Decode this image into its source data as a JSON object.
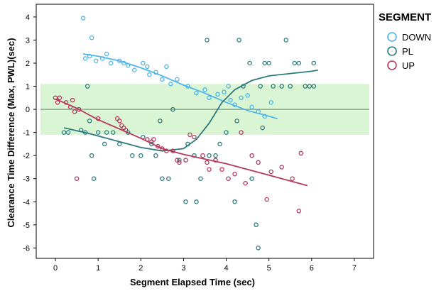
{
  "chart_data": {
    "type": "scatter",
    "title": "",
    "xlabel": "Segment Elapsed Time (sec)",
    "ylabel": "Clearance Time Difference (Max, PWL)(sec)",
    "xlim": [
      -0.45,
      7.45
    ],
    "ylim": [
      -6.45,
      4.55
    ],
    "xticks": [
      "0",
      "1",
      "2",
      "3",
      "4",
      "5",
      "6",
      "7"
    ],
    "yticks": [
      "4",
      "3",
      "2",
      "1",
      "0",
      "-1",
      "-2",
      "-3",
      "-4",
      "-5",
      "-6"
    ],
    "band": {
      "from": -1.1,
      "to": 1.1,
      "color": "#d9f5d3"
    },
    "reference_line": {
      "y": 0,
      "color": "#6e8f6e"
    },
    "grid": false,
    "legend": {
      "title": "SEGMENT",
      "position": "right"
    },
    "series": [
      {
        "name": "DOWN",
        "color": "#4fb5e8",
        "points": [
          [
            0.65,
            3.95
          ],
          [
            0.85,
            3.1
          ],
          [
            0.7,
            2.2
          ],
          [
            0.8,
            2.3
          ],
          [
            0.95,
            2.1
          ],
          [
            1.1,
            2.2
          ],
          [
            1.2,
            2.4
          ],
          [
            1.3,
            2.0
          ],
          [
            1.5,
            2.1
          ],
          [
            1.6,
            2.0
          ],
          [
            1.7,
            1.9
          ],
          [
            1.85,
            1.7
          ],
          [
            2.05,
            2.0
          ],
          [
            2.15,
            1.85
          ],
          [
            2.2,
            1.5
          ],
          [
            2.35,
            1.6
          ],
          [
            2.5,
            1.3
          ],
          [
            2.6,
            1.85
          ],
          [
            2.7,
            1.1
          ],
          [
            2.85,
            1.3
          ],
          [
            3.1,
            1.0
          ],
          [
            3.3,
            0.7
          ],
          [
            3.5,
            0.85
          ],
          [
            3.6,
            0.5
          ],
          [
            3.8,
            0.65
          ],
          [
            3.95,
            0.75
          ],
          [
            4.05,
            1.0
          ],
          [
            4.1,
            0.4
          ],
          [
            4.2,
            0.2
          ],
          [
            4.35,
            0.5
          ],
          [
            4.5,
            0.6
          ],
          [
            4.6,
            0.1
          ],
          [
            4.75,
            -0.1
          ],
          [
            4.9,
            -0.3
          ],
          [
            5.05,
            0.3
          ]
        ],
        "trend": [
          [
            0.65,
            2.4
          ],
          [
            1.0,
            2.3
          ],
          [
            1.5,
            2.1
          ],
          [
            2.0,
            1.8
          ],
          [
            2.5,
            1.45
          ],
          [
            3.0,
            1.05
          ],
          [
            3.5,
            0.7
          ],
          [
            4.0,
            0.3
          ],
          [
            4.5,
            -0.05
          ],
          [
            5.0,
            -0.3
          ],
          [
            5.2,
            -0.4
          ]
        ]
      },
      {
        "name": "PL",
        "color": "#2e7b7d",
        "points": [
          [
            0.2,
            -1.0
          ],
          [
            0.3,
            -1.0
          ],
          [
            0.6,
            -0.9
          ],
          [
            0.7,
            -1.0
          ],
          [
            0.75,
            1.0
          ],
          [
            0.8,
            -0.5
          ],
          [
            0.85,
            -2.0
          ],
          [
            0.9,
            -3.0
          ],
          [
            1.0,
            -1.0
          ],
          [
            1.15,
            -1.5
          ],
          [
            1.2,
            -1.0
          ],
          [
            1.35,
            -1.0
          ],
          [
            1.5,
            -1.5
          ],
          [
            1.7,
            -1.0
          ],
          [
            1.8,
            -2.0
          ],
          [
            2.0,
            -2.0
          ],
          [
            2.05,
            -1.2
          ],
          [
            2.25,
            -1.5
          ],
          [
            2.35,
            -2.0
          ],
          [
            2.45,
            -0.5
          ],
          [
            2.5,
            -3.0
          ],
          [
            2.65,
            -3.0
          ],
          [
            2.75,
            0.0
          ],
          [
            2.9,
            -2.2
          ],
          [
            3.05,
            -4.0
          ],
          [
            3.1,
            -1.5
          ],
          [
            3.25,
            -2.0
          ],
          [
            3.3,
            -4.0
          ],
          [
            3.4,
            -3.0
          ],
          [
            3.55,
            3.0
          ],
          [
            3.6,
            -2.0
          ],
          [
            3.75,
            -2.0
          ],
          [
            3.85,
            -1.5
          ],
          [
            4.0,
            -1.0
          ],
          [
            4.2,
            -4.0
          ],
          [
            4.25,
            -0.5
          ],
          [
            4.3,
            3.0
          ],
          [
            4.4,
            1.0
          ],
          [
            4.55,
            2.0
          ],
          [
            4.6,
            -3.0
          ],
          [
            4.7,
            -5.0
          ],
          [
            4.75,
            -6.0
          ],
          [
            4.8,
            1.0
          ],
          [
            4.85,
            -0.8
          ],
          [
            4.9,
            2.0
          ],
          [
            5.0,
            2.0
          ],
          [
            5.1,
            1.0
          ],
          [
            5.3,
            1.0
          ],
          [
            5.4,
            3.0
          ],
          [
            5.5,
            1.0
          ],
          [
            5.6,
            2.0
          ],
          [
            5.7,
            2.0
          ],
          [
            5.85,
            1.0
          ],
          [
            5.95,
            1.0
          ],
          [
            6.05,
            1.0
          ],
          [
            6.05,
            2.0
          ]
        ],
        "trend": [
          [
            0.2,
            -0.8
          ],
          [
            0.8,
            -1.05
          ],
          [
            1.5,
            -1.4
          ],
          [
            2.0,
            -1.65
          ],
          [
            2.5,
            -1.8
          ],
          [
            3.0,
            -1.7
          ],
          [
            3.3,
            -1.3
          ],
          [
            3.6,
            -0.6
          ],
          [
            3.9,
            0.3
          ],
          [
            4.2,
            0.85
          ],
          [
            4.6,
            1.25
          ],
          [
            5.0,
            1.45
          ],
          [
            5.5,
            1.55
          ],
          [
            6.0,
            1.65
          ],
          [
            6.15,
            1.7
          ]
        ]
      },
      {
        "name": "UP",
        "color": "#b5385b",
        "points": [
          [
            0.0,
            0.5
          ],
          [
            0.05,
            0.3
          ],
          [
            0.1,
            0.5
          ],
          [
            0.25,
            0.3
          ],
          [
            0.35,
            0.1
          ],
          [
            0.4,
            0.4
          ],
          [
            0.45,
            -0.1
          ],
          [
            0.5,
            -3.0
          ],
          [
            0.55,
            0.0
          ],
          [
            1.0,
            -0.4
          ],
          [
            1.45,
            -0.4
          ],
          [
            1.5,
            -0.5
          ],
          [
            1.55,
            -0.7
          ],
          [
            1.6,
            -0.8
          ],
          [
            1.65,
            -0.9
          ],
          [
            2.15,
            -1.3
          ],
          [
            2.25,
            -1.4
          ],
          [
            2.3,
            -1.3
          ],
          [
            2.4,
            -1.6
          ],
          [
            2.5,
            -1.7
          ],
          [
            2.6,
            -1.8
          ],
          [
            2.75,
            -1.8
          ],
          [
            2.85,
            -2.2
          ],
          [
            2.9,
            -2.3
          ],
          [
            3.05,
            -2.2
          ],
          [
            3.15,
            -1.1
          ],
          [
            3.25,
            -1.2
          ],
          [
            3.45,
            -2.0
          ],
          [
            3.55,
            -2.3
          ],
          [
            3.6,
            -2.6
          ],
          [
            3.75,
            -2.2
          ],
          [
            3.9,
            -2.6
          ],
          [
            4.05,
            -3.0
          ],
          [
            4.2,
            -2.8
          ],
          [
            4.35,
            -1.0
          ],
          [
            4.45,
            -3.2
          ],
          [
            4.6,
            -2.0
          ],
          [
            4.75,
            -2.3
          ],
          [
            4.95,
            -3.9
          ],
          [
            5.05,
            -2.7
          ],
          [
            5.3,
            -2.5
          ],
          [
            5.55,
            -3.0
          ],
          [
            5.7,
            -4.4
          ],
          [
            5.75,
            -1.9
          ]
        ],
        "trend": [
          [
            0.0,
            0.45
          ],
          [
            0.5,
            0.05
          ],
          [
            1.0,
            -0.45
          ],
          [
            1.5,
            -0.85
          ],
          [
            2.0,
            -1.25
          ],
          [
            2.5,
            -1.7
          ],
          [
            3.0,
            -1.95
          ],
          [
            3.5,
            -2.15
          ],
          [
            4.0,
            -2.35
          ],
          [
            4.5,
            -2.6
          ],
          [
            5.0,
            -2.85
          ],
          [
            5.5,
            -3.1
          ],
          [
            5.9,
            -3.3
          ]
        ]
      }
    ]
  }
}
